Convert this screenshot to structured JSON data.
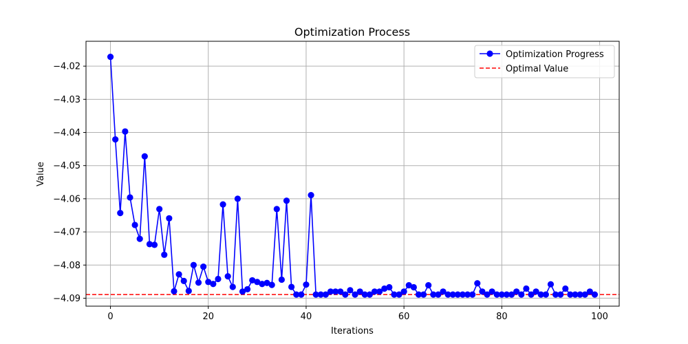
{
  "chart_data": {
    "type": "line",
    "title": "Optimization Process",
    "xlabel": "Iterations",
    "ylabel": "Value",
    "xlim": [
      -5,
      104
    ],
    "ylim": [
      -4.0924,
      -4.0125
    ],
    "xticks": [
      0,
      20,
      40,
      60,
      80,
      100
    ],
    "yticks": [
      -4.02,
      -4.03,
      -4.04,
      -4.05,
      -4.06,
      -4.07,
      -4.08,
      -4.09
    ],
    "ytick_labels": [
      "−4.02",
      "−4.03",
      "−4.04",
      "−4.05",
      "−4.06",
      "−4.07",
      "−4.08",
      "−4.09"
    ],
    "grid": true,
    "legend_position": "top-right",
    "series": [
      {
        "name": "Optimization Progress",
        "color": "#0000ff",
        "marker": "circle",
        "x": [
          0,
          1,
          2,
          3,
          4,
          5,
          6,
          7,
          8,
          9,
          10,
          11,
          12,
          13,
          14,
          15,
          16,
          17,
          18,
          19,
          20,
          21,
          22,
          23,
          24,
          25,
          26,
          27,
          28,
          29,
          30,
          31,
          32,
          33,
          34,
          35,
          36,
          37,
          38,
          39,
          40,
          41,
          42,
          43,
          44,
          45,
          46,
          47,
          48,
          49,
          50,
          51,
          52,
          53,
          54,
          55,
          56,
          57,
          58,
          59,
          60,
          61,
          62,
          63,
          64,
          65,
          66,
          67,
          68,
          69,
          70,
          71,
          72,
          73,
          74,
          75,
          76,
          77,
          78,
          79,
          80,
          81,
          82,
          83,
          84,
          85,
          86,
          87,
          88,
          89,
          90,
          91,
          92,
          93,
          94,
          95,
          96,
          97,
          98,
          99
        ],
        "values": [
          -4.0172,
          -4.0421,
          -4.0643,
          -4.0397,
          -4.0596,
          -4.0679,
          -4.0721,
          -4.0472,
          -4.0737,
          -4.0739,
          -4.0631,
          -4.0769,
          -4.0659,
          -4.0879,
          -4.0828,
          -4.0848,
          -4.0878,
          -4.08,
          -4.0853,
          -4.0805,
          -4.0851,
          -4.0857,
          -4.0842,
          -4.0617,
          -4.0834,
          -4.0866,
          -4.06,
          -4.088,
          -4.0873,
          -4.0846,
          -4.0851,
          -4.0857,
          -4.0854,
          -4.086,
          -4.0631,
          -4.0844,
          -4.0606,
          -4.0866,
          -4.0889,
          -4.0889,
          -4.0859,
          -4.0589,
          -4.0889,
          -4.0889,
          -4.0889,
          -4.088,
          -4.088,
          -4.088,
          -4.0889,
          -4.0876,
          -4.0889,
          -4.088,
          -4.0889,
          -4.0889,
          -4.088,
          -4.088,
          -4.0871,
          -4.0867,
          -4.0889,
          -4.0889,
          -4.088,
          -4.0861,
          -4.0867,
          -4.0889,
          -4.0889,
          -4.0861,
          -4.0889,
          -4.0889,
          -4.088,
          -4.0889,
          -4.0889,
          -4.0889,
          -4.0889,
          -4.0889,
          -4.0889,
          -4.0855,
          -4.088,
          -4.0889,
          -4.088,
          -4.0889,
          -4.0889,
          -4.0889,
          -4.0889,
          -4.088,
          -4.0889,
          -4.0871,
          -4.0889,
          -4.088,
          -4.0889,
          -4.0889,
          -4.0858,
          -4.0889,
          -4.0889,
          -4.0871,
          -4.0889,
          -4.0889,
          -4.0889,
          -4.0889,
          -4.088,
          -4.0889
        ]
      },
      {
        "name": "Optimal Value",
        "color": "#ff0000",
        "style": "dashed",
        "value": -4.0889
      }
    ]
  }
}
